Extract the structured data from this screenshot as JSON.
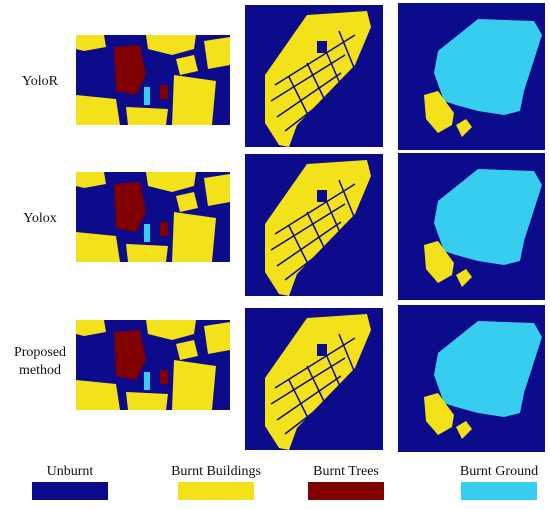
{
  "rows": [
    {
      "label_lines": [
        "YoloR"
      ]
    },
    {
      "label_lines": [
        "Yolox"
      ]
    },
    {
      "label_lines": [
        "Proposed",
        "method"
      ]
    }
  ],
  "legend": [
    {
      "label": "Unburnt",
      "color": "#0b0b8c"
    },
    {
      "label": "Burnt Buildings",
      "color": "#f3e11a"
    },
    {
      "label": "Burnt Trees",
      "color": "#800000"
    },
    {
      "label": "Burnt Ground",
      "color": "#36cdee"
    }
  ]
}
